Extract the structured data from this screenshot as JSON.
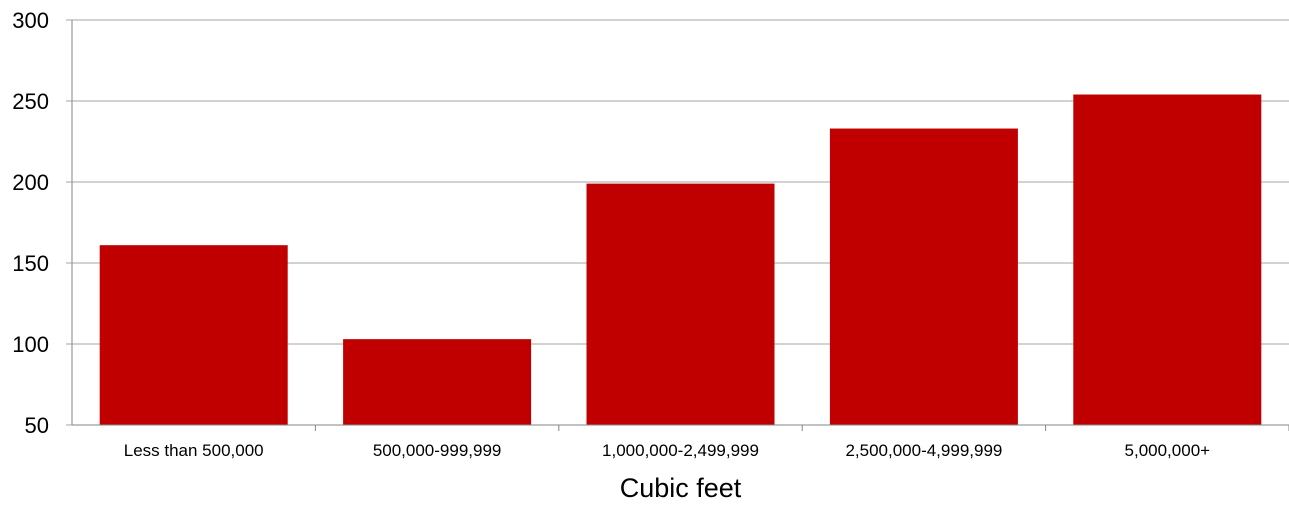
{
  "chart_data": {
    "type": "bar",
    "title": "",
    "xlabel": "Cubic feet",
    "ylabel": "",
    "categories": [
      "Less than 500,000",
      "500,000-999,999",
      "1,000,000-2,499,999",
      "2,500,000-4,999,999",
      "5,000,000+"
    ],
    "values": [
      161,
      103,
      199,
      233,
      254
    ],
    "yticks": [
      "50",
      "100",
      "150",
      "200",
      "250",
      "300"
    ],
    "ylim": [
      50,
      300
    ],
    "grid": true,
    "legend": "none",
    "colors": {
      "bar": "#c00000",
      "grid": "#a6a6a6",
      "axis": "#868686"
    }
  }
}
